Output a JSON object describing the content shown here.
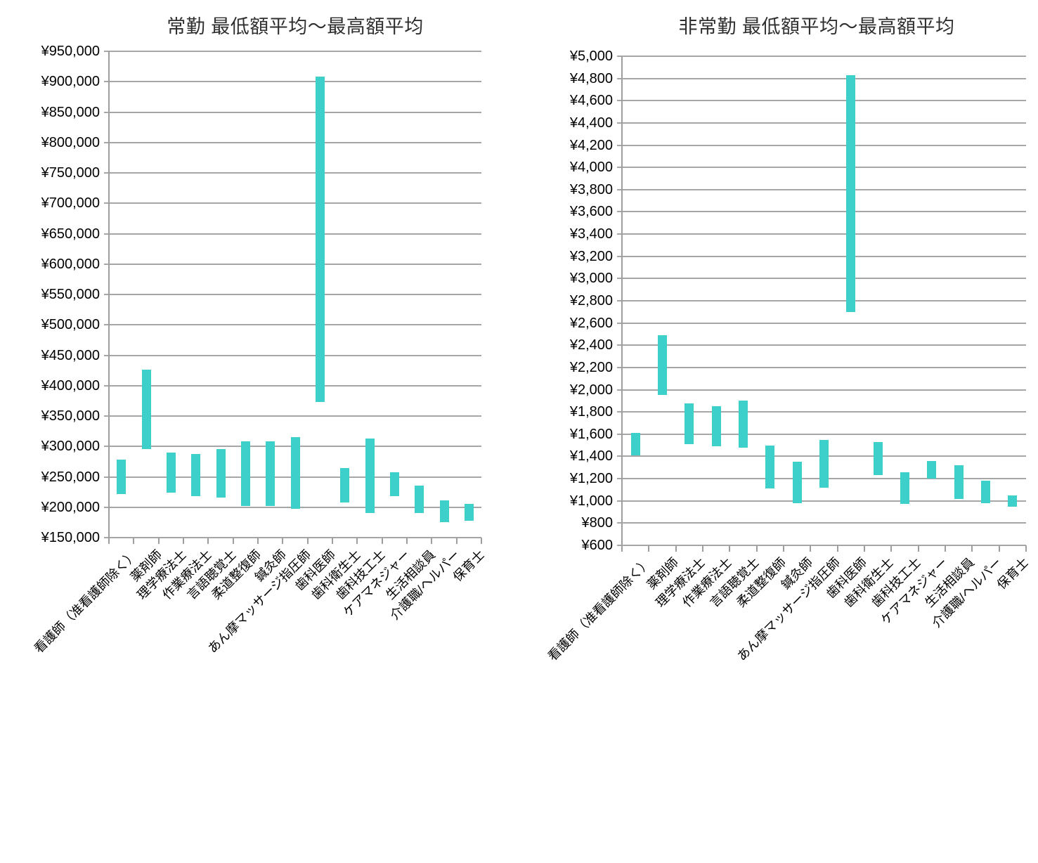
{
  "page": {
    "background_color": "#FFFFFF"
  },
  "chart_data": [
    {
      "type": "bar",
      "subtype": "floating-range-column",
      "title": "常勤 最低額平均～最高額平均",
      "xlabel": "",
      "ylabel": "",
      "legend": "none",
      "grid": true,
      "gridlines": "horizontal",
      "bar_color": "#3DCFC9",
      "grid_color": "#A6A6A6",
      "axis_color": "#9E9E9E",
      "text_color": "#000000",
      "title_color": "#2F2F2F",
      "ylim": [
        150000,
        950000
      ],
      "ytick_step": 50000,
      "ytick_labels": [
        "¥950,000",
        "¥900,000",
        "¥850,000",
        "¥800,000",
        "¥750,000",
        "¥700,000",
        "¥650,000",
        "¥600,000",
        "¥550,000",
        "¥500,000",
        "¥450,000",
        "¥400,000",
        "¥350,000",
        "¥300,000",
        "¥250,000",
        "¥200,000",
        "¥150,000"
      ],
      "categories": [
        "看護師（准看護師除く）",
        "薬剤師",
        "理学療法士",
        "作業療法士",
        "言語聴覚士",
        "柔道整復師",
        "鍼灸師",
        "あん摩マッサージ指圧師",
        "歯科医師",
        "歯科衛生士",
        "歯科技工士",
        "ケアマネジャー",
        "生活相談員",
        "介護職/ヘルパー",
        "保育士"
      ],
      "series": [
        {
          "name": "最低額平均",
          "values": [
            222000,
            296000,
            224000,
            218000,
            216000,
            202000,
            202000,
            197000,
            373000,
            208000,
            191000,
            218000,
            191000,
            175000,
            178000
          ]
        },
        {
          "name": "最高額平均",
          "values": [
            278000,
            426000,
            290000,
            288000,
            296000,
            308000,
            308000,
            315000,
            908000,
            265000,
            313000,
            258000,
            236000,
            211000,
            205000
          ]
        }
      ]
    },
    {
      "type": "bar",
      "subtype": "floating-range-column",
      "title": "非常勤 最低額平均～最高額平均",
      "xlabel": "",
      "ylabel": "",
      "legend": "none",
      "grid": true,
      "gridlines": "horizontal",
      "bar_color": "#3DCFC9",
      "grid_color": "#A6A6A6",
      "axis_color": "#9E9E9E",
      "text_color": "#000000",
      "title_color": "#2F2F2F",
      "ylim": [
        600,
        5000
      ],
      "ytick_step": 200,
      "ytick_labels": [
        "¥5,000",
        "¥4,800",
        "¥4,600",
        "¥4,400",
        "¥4,200",
        "¥4,000",
        "¥3,800",
        "¥3,600",
        "¥3,400",
        "¥3,200",
        "¥3,000",
        "¥2,800",
        "¥2,600",
        "¥2,400",
        "¥2,200",
        "¥2,000",
        "¥1,800",
        "¥1,600",
        "¥1,400",
        "¥1,200",
        "¥1,000",
        "¥800",
        "¥600"
      ],
      "categories": [
        "看護師（准看護師除く）",
        "薬剤師",
        "理学療法士",
        "作業療法士",
        "言語聴覚士",
        "柔道整復師",
        "鍼灸師",
        "あん摩マッサージ指圧師",
        "歯科医師",
        "歯科衛生士",
        "歯科技工士",
        "ケアマネジャー",
        "生活相談員",
        "介護職/ヘルパー",
        "保育士"
      ],
      "series": [
        {
          "name": "最低額平均",
          "values": [
            1410,
            1950,
            1510,
            1490,
            1480,
            1110,
            980,
            1120,
            2700,
            1230,
            970,
            1200,
            1020,
            980,
            950
          ]
        },
        {
          "name": "最高額平均",
          "values": [
            1610,
            2490,
            1880,
            1850,
            1900,
            1500,
            1350,
            1550,
            4830,
            1530,
            1260,
            1360,
            1320,
            1180,
            1050
          ]
        }
      ]
    }
  ]
}
